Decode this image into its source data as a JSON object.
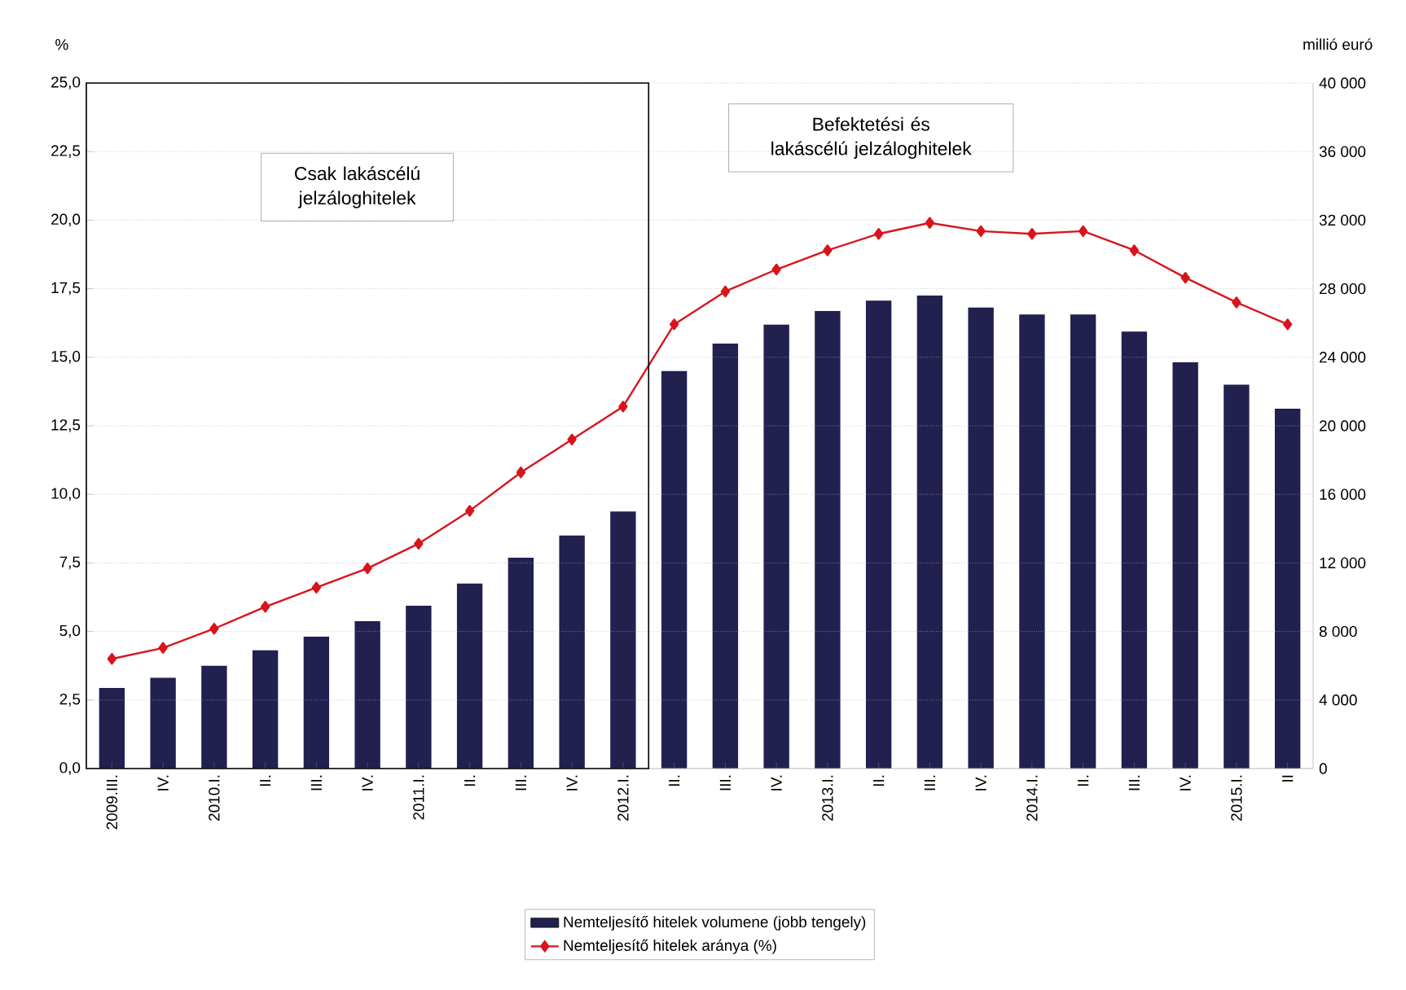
{
  "chart_data": {
    "type": "bar",
    "categories": [
      "2009.III.",
      "IV.",
      "2010.I.",
      "II.",
      "III.",
      "IV.",
      "2011.I.",
      "II.",
      "III.",
      "IV.",
      "2012.I.",
      "II.",
      "III.",
      "IV.",
      "2013.I.",
      "II.",
      "III.",
      "IV.",
      "2014.I.",
      "II.",
      "III.",
      "IV.",
      "2015.I.",
      "II"
    ],
    "series": [
      {
        "name": "Nemteljesítő hitelek volumene (jobb tengely)",
        "axis": "y2",
        "color": "#22204f",
        "values": [
          4700,
          5300,
          6000,
          6900,
          7700,
          8600,
          9500,
          10800,
          12300,
          13600,
          15000,
          23200,
          24800,
          25900,
          26700,
          27300,
          27600,
          26900,
          26500,
          26500,
          25500,
          23700,
          22400,
          21000
        ]
      },
      {
        "name": "Nemteljesítő hitelek aránya (%)",
        "type": "line",
        "marker": "diamond",
        "color": "#d9141c",
        "values": [
          4.0,
          4.4,
          5.1,
          5.9,
          6.6,
          7.3,
          8.2,
          9.4,
          10.8,
          12.0,
          13.2,
          16.2,
          17.4,
          18.2,
          18.9,
          19.5,
          19.9,
          19.6,
          19.5,
          19.6,
          18.9,
          17.9,
          17.0,
          16.2
        ]
      }
    ],
    "ylabel": "%",
    "y2label": "millió euró",
    "ylim": [
      0,
      25
    ],
    "yticks": [
      {
        "value": 0,
        "label": "0,0"
      },
      {
        "value": 2.5,
        "label": "2,5"
      },
      {
        "value": 5,
        "label": "5,0"
      },
      {
        "value": 7.5,
        "label": "7,5"
      },
      {
        "value": 10,
        "label": "10,0"
      },
      {
        "value": 12.5,
        "label": "12,5"
      },
      {
        "value": 15,
        "label": "15,0"
      },
      {
        "value": 17.5,
        "label": "17,5"
      },
      {
        "value": 20,
        "label": "20,0"
      },
      {
        "value": 22.5,
        "label": "22,5"
      },
      {
        "value": 25,
        "label": "25,0"
      }
    ],
    "y2lim": [
      0,
      40000
    ],
    "y2ticks": [
      0,
      {
        "value": 4000,
        "label": "4 000"
      },
      {
        "value": 8000,
        "label": "8 000"
      },
      {
        "value": 12000,
        "label": "12 000"
      },
      {
        "value": 16000,
        "label": "16 000"
      },
      {
        "value": 20000,
        "label": "20 000"
      },
      {
        "value": 24000,
        "label": "24 000"
      },
      {
        "value": 28000,
        "label": "28 000"
      },
      {
        "value": 32000,
        "label": "32 000"
      },
      {
        "value": 36000,
        "label": "36 000"
      },
      {
        "value": 40000,
        "label": "40 000"
      }
    ],
    "annotations": [
      "Csak lakáscélú jelzáloghitelek",
      "Befektetési és lakáscélú jelzáloghitelek"
    ],
    "grid": "y",
    "legend": "bottom"
  }
}
